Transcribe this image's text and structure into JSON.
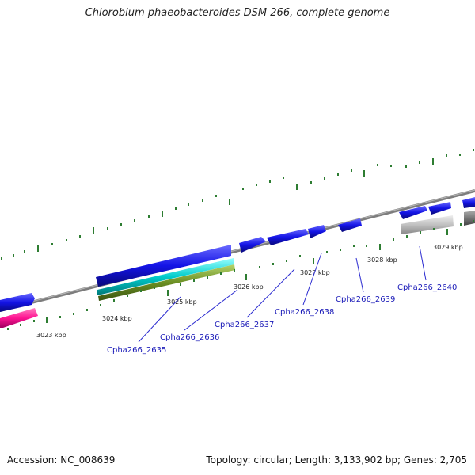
{
  "title": "Chlorobium phaeobacteroides DSM 266, complete genome",
  "accession": "Accession: NC_008639",
  "summary": "Topology: circular; Length: 3,133,902 bp; Genes: 2,705",
  "colors": {
    "backbone": "#808080",
    "cds_blue": "#1414e6",
    "cds_pink": "#ff1493",
    "cyan": "#00cccc",
    "olive": "#6b8e23",
    "gray_feature": "#c0c0c0",
    "dark_gray_feature": "#777777",
    "tick": "#2e7d32",
    "label": "#1a1ab8"
  },
  "kbp_labels": [
    "3023 kbp",
    "3024 kbp",
    "3025 kbp",
    "3026 kbp",
    "3027 kbp",
    "3028 kbp",
    "3029 kbp"
  ],
  "gene_labels": [
    "Cpha266_2635",
    "Cpha266_2636",
    "Cpha266_2637",
    "Cpha266_2638",
    "Cpha266_2639",
    "Cpha266_2640"
  ]
}
